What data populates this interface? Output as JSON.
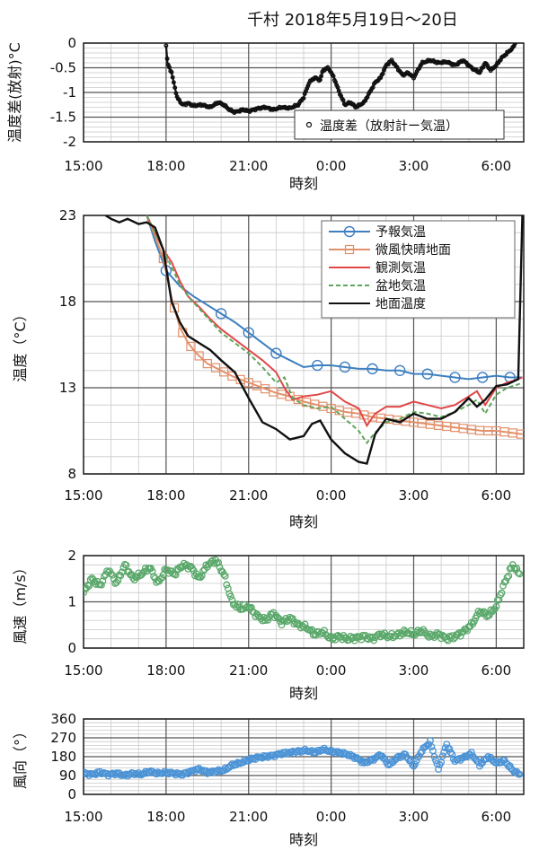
{
  "page_title": "千村 2018年5月19日～20日",
  "chart_data": [
    {
      "id": "temp-diff",
      "type": "scatter",
      "xlabel": "時刻",
      "ylabel": "温度差(放射)°C",
      "x_ticks": [
        "15:00",
        "18:00",
        "21:00",
        "0:00",
        "3:00",
        "6:00"
      ],
      "x_range_hours": [
        15,
        31
      ],
      "y_ticks": [
        "0",
        "-0.5",
        "-1",
        "-1.5",
        "-2"
      ],
      "ylim": [
        -2,
        0
      ],
      "grid": true,
      "legend_position": "bottom-right",
      "series": [
        {
          "name": "温度差（放射計ー気温）",
          "color": "#111111",
          "marker": "circle-small",
          "x": [
            18.0,
            18.05,
            18.2,
            18.4,
            18.6,
            18.8,
            19.0,
            19.3,
            19.6,
            19.9,
            20.1,
            20.3,
            20.5,
            20.8,
            21.0,
            21.3,
            21.6,
            21.9,
            22.2,
            22.5,
            22.8,
            23.0,
            23.2,
            23.4,
            23.6,
            23.7,
            23.9,
            24.1,
            24.3,
            24.5,
            24.7,
            24.9,
            25.2,
            25.4,
            25.6,
            25.8,
            26.0,
            26.2,
            26.4,
            26.6,
            26.8,
            27.0,
            27.3,
            27.6,
            27.9,
            28.2,
            28.5,
            28.8,
            29.1,
            29.4,
            29.6,
            29.8,
            30.0,
            30.2,
            30.4,
            30.6,
            30.7
          ],
          "y": [
            -0.05,
            -0.4,
            -0.6,
            -1.1,
            -1.25,
            -1.22,
            -1.27,
            -1.25,
            -1.3,
            -1.2,
            -1.25,
            -1.35,
            -1.4,
            -1.35,
            -1.38,
            -1.33,
            -1.3,
            -1.35,
            -1.3,
            -1.32,
            -1.25,
            -1.1,
            -0.8,
            -0.7,
            -0.75,
            -0.55,
            -0.5,
            -0.7,
            -1.0,
            -1.25,
            -1.2,
            -1.3,
            -1.2,
            -1.0,
            -0.8,
            -0.7,
            -0.45,
            -0.35,
            -0.5,
            -0.65,
            -0.6,
            -0.7,
            -0.4,
            -0.35,
            -0.4,
            -0.38,
            -0.45,
            -0.35,
            -0.5,
            -0.6,
            -0.4,
            -0.55,
            -0.45,
            -0.3,
            -0.2,
            -0.1,
            0.0
          ]
        }
      ]
    },
    {
      "id": "temperature",
      "type": "line",
      "xlabel": "時刻",
      "ylabel": "温度（°C）",
      "x_ticks": [
        "15:00",
        "18:00",
        "21:00",
        "0:00",
        "3:00",
        "6:00"
      ],
      "x_range_hours": [
        15,
        31
      ],
      "y_ticks": [
        "23",
        "18",
        "13",
        "8"
      ],
      "ylim": [
        8,
        23
      ],
      "grid": true,
      "legend_position": "top-right",
      "series": [
        {
          "name": "予報気温",
          "color": "#3d7fc1",
          "style": "solid",
          "marker": "circle",
          "x": [
            17.3,
            17.6,
            18.0,
            18.5,
            19.0,
            19.5,
            20.0,
            20.5,
            21.0,
            21.5,
            22.0,
            22.5,
            23.0,
            23.5,
            24.0,
            24.5,
            25.0,
            25.5,
            26.0,
            26.5,
            27.0,
            27.5,
            28.0,
            28.5,
            29.0,
            29.5,
            30.0,
            30.5,
            30.95
          ],
          "y": [
            23.0,
            21.5,
            19.8,
            18.9,
            18.3,
            17.8,
            17.3,
            16.8,
            16.2,
            15.6,
            15.0,
            14.6,
            14.2,
            14.3,
            14.3,
            14.2,
            14.1,
            14.1,
            14.0,
            14.0,
            13.8,
            13.8,
            13.7,
            13.6,
            13.5,
            13.6,
            13.7,
            13.6,
            13.6
          ],
          "marker_x": [
            18.0,
            20.0,
            21.0,
            22.0,
            23.5,
            24.5,
            25.5,
            26.5,
            27.5,
            28.5,
            29.5,
            30.5
          ]
        },
        {
          "name": "微風快晴地面",
          "color": "#e2906a",
          "style": "solid",
          "marker": "square",
          "x": [
            17.3,
            17.6,
            17.9,
            18.2,
            18.5,
            18.8,
            19.1,
            19.5,
            20.0,
            20.5,
            21.0,
            21.5,
            22.0,
            22.5,
            23.0,
            23.5,
            24.0,
            24.5,
            25.0,
            25.5,
            26.0,
            26.5,
            27.0,
            27.5,
            28.0,
            28.5,
            29.0,
            29.5,
            30.0,
            30.5,
            30.95
          ],
          "y": [
            23.0,
            21.8,
            20.5,
            18.2,
            16.5,
            15.6,
            15.0,
            14.4,
            14.0,
            13.6,
            13.3,
            13.0,
            12.7,
            12.5,
            12.2,
            12.0,
            11.8,
            11.6,
            11.5,
            11.3,
            11.2,
            11.1,
            11.0,
            10.9,
            10.8,
            10.7,
            10.6,
            10.5,
            10.5,
            10.4,
            10.3
          ],
          "marker_x": [
            17.9,
            18.3,
            18.6,
            18.9,
            19.2,
            19.5,
            19.8,
            20.1,
            20.4,
            20.7,
            21.0,
            21.3,
            21.6,
            21.9,
            22.2,
            22.5,
            22.8,
            23.1,
            23.4,
            23.7,
            24.0,
            24.3,
            24.6,
            24.9,
            25.2,
            25.5,
            25.8,
            26.1,
            26.4,
            26.7,
            27.0,
            27.3,
            27.6,
            27.9,
            28.2,
            28.5,
            28.8,
            29.1,
            29.4,
            29.7,
            30.0,
            30.3,
            30.6,
            30.9
          ]
        },
        {
          "name": "観測気温",
          "color": "#e04848",
          "style": "solid",
          "marker": "none",
          "x": [
            17.3,
            17.6,
            17.9,
            18.2,
            18.5,
            18.8,
            19.2,
            19.6,
            20.0,
            20.5,
            21.0,
            21.5,
            22.0,
            22.3,
            22.6,
            23.0,
            23.5,
            24.0,
            24.5,
            25.0,
            25.3,
            25.6,
            26.0,
            26.5,
            27.0,
            27.5,
            28.0,
            28.5,
            29.0,
            29.3,
            29.6,
            30.0,
            30.4,
            30.8,
            30.95
          ],
          "y": [
            23.0,
            22.0,
            21.0,
            20.3,
            19.2,
            18.3,
            17.7,
            17.0,
            16.4,
            15.8,
            15.2,
            14.6,
            13.9,
            13.0,
            12.3,
            12.5,
            12.6,
            12.8,
            12.2,
            11.8,
            10.8,
            11.5,
            11.9,
            11.9,
            12.2,
            12.0,
            11.8,
            12.0,
            12.5,
            12.8,
            12.0,
            13.0,
            13.3,
            13.5,
            13.6
          ]
        },
        {
          "name": "盆地気温",
          "color": "#5fa65a",
          "style": "dashed",
          "marker": "none",
          "x": [
            17.3,
            17.6,
            17.9,
            18.2,
            18.5,
            18.8,
            19.2,
            19.6,
            20.0,
            20.5,
            21.0,
            21.5,
            22.0,
            22.3,
            22.6,
            23.0,
            23.5,
            24.0,
            24.5,
            25.0,
            25.3,
            25.6,
            26.0,
            26.5,
            27.0,
            27.5,
            28.0,
            28.5,
            29.0,
            29.3,
            29.6,
            30.0,
            30.4,
            30.8,
            30.95
          ],
          "y": [
            23.0,
            22.0,
            21.0,
            20.0,
            19.0,
            18.3,
            17.6,
            16.9,
            16.2,
            15.6,
            15.0,
            14.2,
            13.3,
            13.6,
            12.4,
            12.0,
            11.8,
            11.9,
            11.2,
            10.5,
            9.8,
            10.4,
            11.0,
            11.2,
            11.6,
            11.5,
            11.3,
            11.6,
            12.0,
            12.3,
            11.5,
            12.6,
            13.0,
            13.2,
            13.3
          ]
        },
        {
          "name": "地面温度",
          "color": "#111111",
          "style": "solid",
          "marker": "none",
          "x": [
            15.8,
            16.0,
            16.3,
            16.6,
            17.0,
            17.3,
            17.6,
            17.9,
            18.2,
            18.5,
            18.8,
            19.2,
            19.6,
            20.0,
            20.5,
            21.0,
            21.5,
            22.0,
            22.5,
            23.0,
            23.3,
            23.6,
            24.0,
            24.5,
            25.0,
            25.3,
            25.6,
            26.0,
            26.5,
            27.0,
            27.5,
            28.0,
            28.5,
            29.0,
            29.3,
            29.6,
            30.0,
            30.4,
            30.8,
            30.95
          ],
          "y": [
            23.0,
            22.8,
            22.6,
            22.8,
            22.5,
            22.6,
            22.3,
            21.0,
            18.0,
            16.8,
            16.0,
            15.6,
            15.2,
            14.6,
            13.9,
            12.4,
            11.0,
            10.6,
            10.0,
            10.2,
            10.9,
            11.1,
            10.0,
            9.2,
            8.7,
            8.6,
            10.3,
            11.2,
            11.0,
            11.5,
            11.2,
            11.2,
            11.6,
            12.4,
            11.9,
            12.3,
            13.1,
            13.2,
            13.5,
            23.0
          ]
        }
      ]
    },
    {
      "id": "wind-speed",
      "type": "scatter",
      "xlabel": "時刻",
      "ylabel": "風速（m/s）",
      "x_ticks": [
        "15:00",
        "18:00",
        "21:00",
        "0:00",
        "3:00",
        "6:00"
      ],
      "x_range_hours": [
        15,
        31
      ],
      "y_ticks": [
        "2",
        "1",
        "0"
      ],
      "ylim": [
        0,
        2
      ],
      "grid": true,
      "series": [
        {
          "name": "",
          "color": "#5aa86a",
          "marker": "circle",
          "x": [
            15.0,
            15.3,
            15.6,
            15.9,
            16.2,
            16.5,
            16.8,
            17.1,
            17.4,
            17.7,
            18.0,
            18.3,
            18.6,
            18.9,
            19.2,
            19.5,
            19.8,
            20.1,
            20.4,
            20.7,
            21.0,
            21.3,
            21.6,
            21.9,
            22.2,
            22.5,
            22.8,
            23.1,
            23.4,
            23.7,
            24.0,
            24.3,
            24.6,
            24.9,
            25.2,
            25.5,
            25.8,
            26.1,
            26.4,
            26.7,
            27.0,
            27.3,
            27.6,
            27.9,
            28.2,
            28.5,
            28.8,
            29.1,
            29.4,
            29.7,
            30.0,
            30.3,
            30.6,
            30.9
          ],
          "y": [
            1.2,
            1.5,
            1.35,
            1.7,
            1.4,
            1.8,
            1.5,
            1.6,
            1.75,
            1.4,
            1.7,
            1.6,
            1.8,
            1.75,
            1.5,
            1.8,
            1.9,
            1.6,
            1.0,
            0.85,
            0.9,
            0.7,
            0.6,
            0.75,
            0.55,
            0.65,
            0.5,
            0.45,
            0.3,
            0.35,
            0.2,
            0.25,
            0.2,
            0.22,
            0.25,
            0.2,
            0.3,
            0.25,
            0.28,
            0.35,
            0.3,
            0.38,
            0.25,
            0.3,
            0.2,
            0.25,
            0.35,
            0.5,
            0.8,
            0.7,
            0.9,
            1.4,
            1.8,
            1.55
          ]
        }
      ]
    },
    {
      "id": "wind-direction",
      "type": "scatter",
      "xlabel": "時刻",
      "ylabel": "風向（°）",
      "x_ticks": [
        "15:00",
        "18:00",
        "21:00",
        "0:00",
        "3:00",
        "6:00"
      ],
      "x_range_hours": [
        15,
        31
      ],
      "y_ticks": [
        "360",
        "270",
        "180",
        "90",
        "0"
      ],
      "ylim": [
        0,
        360
      ],
      "grid": true,
      "series": [
        {
          "name": "",
          "color": "#4b93d6",
          "marker": "circle",
          "x": [
            15.0,
            15.3,
            15.6,
            15.9,
            16.2,
            16.5,
            16.8,
            17.1,
            17.4,
            17.7,
            18.0,
            18.3,
            18.6,
            18.9,
            19.2,
            19.5,
            19.8,
            20.1,
            20.4,
            20.7,
            21.0,
            21.3,
            21.6,
            21.9,
            22.2,
            22.5,
            22.8,
            23.1,
            23.4,
            23.7,
            24.0,
            24.3,
            24.6,
            24.9,
            25.2,
            25.5,
            25.8,
            26.1,
            26.4,
            26.7,
            27.0,
            27.3,
            27.6,
            27.9,
            28.2,
            28.5,
            28.8,
            29.1,
            29.4,
            29.7,
            30.0,
            30.3,
            30.6,
            30.9
          ],
          "y": [
            100,
            95,
            105,
            95,
            100,
            90,
            100,
            95,
            110,
            100,
            105,
            100,
            95,
            110,
            120,
            105,
            110,
            115,
            140,
            150,
            165,
            175,
            180,
            185,
            195,
            200,
            205,
            210,
            200,
            215,
            205,
            200,
            190,
            175,
            150,
            165,
            190,
            140,
            175,
            190,
            135,
            210,
            250,
            120,
            240,
            160,
            175,
            195,
            140,
            180,
            150,
            160,
            115,
            90
          ]
        }
      ]
    }
  ]
}
